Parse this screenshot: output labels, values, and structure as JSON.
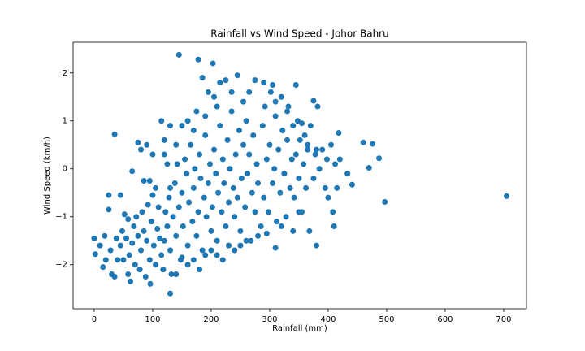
{
  "chart_data": {
    "type": "scatter",
    "title": "Rainfall vs Wind Speed - Johor Bahru",
    "x_label": "Rainfall (mm)",
    "y_label": "Wind Speed (km/h)",
    "color": "#1f77b4",
    "grid": false,
    "xlim": [
      -36,
      739
    ],
    "ylim": [
      -2.92,
      2.64
    ],
    "xticks": [
      0,
      100,
      200,
      300,
      400,
      500,
      600,
      700
    ],
    "yticks": [
      {
        "value": -2,
        "label": "−2"
      },
      {
        "value": -1,
        "label": "−1"
      },
      0,
      1,
      2
    ],
    "x": [
      705,
      497,
      487,
      476,
      470,
      460,
      441,
      433,
      145,
      178,
      203,
      130,
      96,
      0,
      2,
      35,
      25,
      25,
      45,
      65,
      75,
      90,
      375,
      345,
      290,
      305,
      10,
      15,
      20,
      28,
      30,
      35,
      40,
      45,
      48,
      50,
      55,
      58,
      60,
      62,
      65,
      68,
      70,
      72,
      75,
      78,
      80,
      82,
      85,
      88,
      90,
      92,
      95,
      98,
      100,
      102,
      105,
      108,
      110,
      112,
      18,
      38,
      52,
      58,
      85,
      95,
      105,
      80,
      100,
      115,
      120,
      125,
      130,
      115,
      118,
      120,
      122,
      125,
      128,
      130,
      132,
      135,
      138,
      140,
      142,
      145,
      148,
      150,
      152,
      155,
      158,
      160,
      162,
      165,
      168,
      170,
      172,
      175,
      178,
      180,
      182,
      185,
      188,
      190,
      192,
      195,
      198,
      200,
      202,
      205,
      208,
      210,
      212,
      215,
      218,
      220,
      222,
      225,
      228,
      230,
      232,
      235,
      238,
      240,
      242,
      245,
      248,
      250,
      252,
      255,
      258,
      260,
      262,
      265,
      268,
      270,
      272,
      275,
      278,
      280,
      150,
      160,
      175,
      185,
      195,
      205,
      215,
      225,
      235,
      245,
      255,
      210,
      190,
      170,
      140,
      130,
      120,
      160,
      170,
      180,
      190,
      200,
      210,
      220,
      230,
      240,
      250,
      260,
      140,
      150,
      285,
      288,
      290,
      292,
      295,
      298,
      300,
      302,
      305,
      308,
      310,
      312,
      315,
      318,
      320,
      322,
      325,
      328,
      330,
      332,
      335,
      338,
      340,
      342,
      345,
      348,
      350,
      352,
      355,
      358,
      360,
      362,
      365,
      368,
      370,
      375,
      378,
      380,
      382,
      385,
      390,
      395,
      398,
      400,
      405,
      408,
      410,
      412,
      415,
      418,
      420,
      310,
      280,
      295,
      320,
      340,
      350,
      265,
      275,
      310,
      330,
      355,
      365,
      380
    ],
    "values": [
      -0.57,
      -0.69,
      0.22,
      0.52,
      0.02,
      0.55,
      -0.33,
      -0.1,
      2.38,
      2.28,
      2.2,
      -2.6,
      -2.4,
      -1.45,
      -1.78,
      0.72,
      -0.55,
      -0.85,
      -0.55,
      -0.05,
      0.55,
      0.5,
      1.42,
      1.75,
      1.8,
      1.75,
      -1.6,
      -2.05,
      -1.9,
      -1.7,
      -2.2,
      -2.25,
      -1.9,
      -1.6,
      -1.3,
      -1.9,
      -1.45,
      -2.2,
      -1.8,
      -2.35,
      -1.55,
      -1.2,
      -2.0,
      -1.0,
      -1.4,
      -2.1,
      -1.7,
      -0.9,
      -1.3,
      -2.25,
      -1.5,
      -0.75,
      -1.9,
      -1.1,
      -0.55,
      -1.6,
      -2.0,
      -1.25,
      -0.8,
      -1.45,
      -1.4,
      -1.45,
      -0.95,
      -1.05,
      -0.25,
      -0.25,
      -0.4,
      0.4,
      0.3,
      1.0,
      0.3,
      0.1,
      -0.4,
      -1.8,
      -2.1,
      -1.5,
      -0.9,
      -1.2,
      -0.6,
      -1.7,
      -2.2,
      -1.0,
      -0.3,
      -1.4,
      0.1,
      -0.8,
      -1.9,
      -0.5,
      -1.2,
      0.2,
      -0.1,
      -1.6,
      -0.7,
      0.5,
      -1.1,
      -0.4,
      0.0,
      -1.4,
      -0.9,
      0.3,
      -0.2,
      -1.7,
      -0.6,
      0.7,
      -1.0,
      -0.3,
      0.1,
      -1.3,
      -0.8,
      0.4,
      -0.1,
      -1.5,
      -0.5,
      0.9,
      -0.9,
      0.2,
      -0.3,
      -1.2,
      0.6,
      -0.7,
      0.0,
      1.2,
      -0.4,
      -1.0,
      0.3,
      -0.6,
      0.8,
      -1.3,
      -0.2,
      0.5,
      -0.8,
      1.0,
      -0.1,
      0.3,
      -1.5,
      -0.5,
      0.7,
      -0.9,
      0.1,
      -0.3,
      0.9,
      1.0,
      1.2,
      1.9,
      1.6,
      1.5,
      1.8,
      1.85,
      1.6,
      1.95,
      1.4,
      1.3,
      1.1,
      0.8,
      0.5,
      0.9,
      0.6,
      -2.0,
      -1.9,
      -2.1,
      -1.8,
      -1.7,
      -1.8,
      -1.9,
      -1.6,
      -1.7,
      -1.6,
      -1.5,
      -2.2,
      -1.85,
      -1.2,
      0.9,
      -0.6,
      1.3,
      0.2,
      -0.9,
      0.5,
      1.6,
      -0.3,
      0.0,
      1.1,
      -1.1,
      0.4,
      -0.5,
      1.5,
      0.8,
      -0.1,
      -1.0,
      0.6,
      1.3,
      -0.4,
      0.2,
      0.9,
      -0.6,
      0.3,
      1.0,
      -0.2,
      0.6,
      -0.9,
      0.1,
      0.7,
      -0.4,
      0.4,
      -1.3,
      0.9,
      -0.2,
      0.3,
      -1.6,
      1.3,
      0.0,
      0.4,
      -0.4,
      0.2,
      -0.6,
      0.5,
      -0.9,
      -1.2,
      0.1,
      -0.4,
      0.75,
      0.2,
      -1.65,
      -1.4,
      -1.35,
      -1.2,
      -1.3,
      -0.9,
      1.6,
      1.85,
      1.4,
      1.2,
      0.95,
      0.5,
      0.4
    ]
  }
}
